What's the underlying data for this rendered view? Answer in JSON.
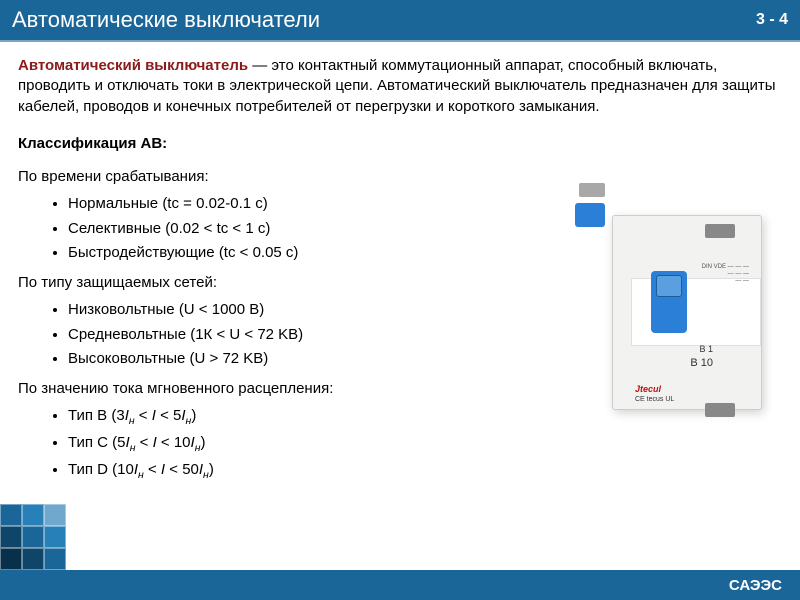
{
  "header": {
    "title": "Автоматические выключатели",
    "page_indicator": "3 - 4",
    "bar_bg_color": "#1a6699",
    "bar_text_color": "#ffffff",
    "underline_color": "#7aa5c2"
  },
  "intro": {
    "term": "Автоматический выключатель",
    "term_color": "#8b1a1a",
    "text_after": " — это контактный коммутационный аппарат, способный включать, проводить и отключать токи в электрической цепи. Автоматический выключатель предназначен для защиты кабелей, проводов и конечных потребителей от перегрузки и короткого замыкания."
  },
  "classification": {
    "title": "Классификация АВ:",
    "groups": [
      {
        "label": "По времени срабатывания:",
        "items": [
          "Нормальные (tс = 0.02-0.1 c)",
          "Селективные (0.02 < tс < 1 c)",
          "Быстродействующие (tс < 0.05 c)"
        ]
      },
      {
        "label": "По типу защищаемых сетей:",
        "items": [
          "Низковольтные (U < 1000 В)",
          "Средневольтные (1К < U < 72 KB)",
          "Высоковольтные (U > 72 KB)"
        ]
      },
      {
        "label": "По значению тока мгновенного расцепления:",
        "items_html": [
          "Тип B (3<span class=\"sub-i\">I<sub>н</sub></span> < <span class=\"sub-i\">I</span> < 5<span class=\"sub-i\">I<sub>н</sub></span>)",
          "Тип C (5<span class=\"sub-i\">I<sub>н</sub></span> < <span class=\"sub-i\">I</span> < 10<span class=\"sub-i\">I<sub>н</sub></span>)",
          "Тип D (10<span class=\"sub-i\">I<sub>н</sub></span> < <span class=\"sub-i\">I</span> < 50<span class=\"sub-i\">I<sub>н</sub></span>)"
        ]
      }
    ]
  },
  "footer": {
    "label": "САЭЭС",
    "bg_color": "#1a6699"
  },
  "decor": {
    "colors": [
      [
        "#1a6699",
        "#2880b8",
        "#6fa8cc"
      ],
      [
        "#0e4569",
        "#1a6699",
        "#2880b8"
      ],
      [
        "#07304a",
        "#0e4569",
        "#1a6699"
      ]
    ]
  },
  "device": {
    "brand": "Jtecul",
    "sub_brand": "tecus UL",
    "marking_top": "B 1",
    "marking_bottom": "B 10",
    "body_color": "#f2f2f0",
    "toggle_color": "#2b7fd6"
  }
}
